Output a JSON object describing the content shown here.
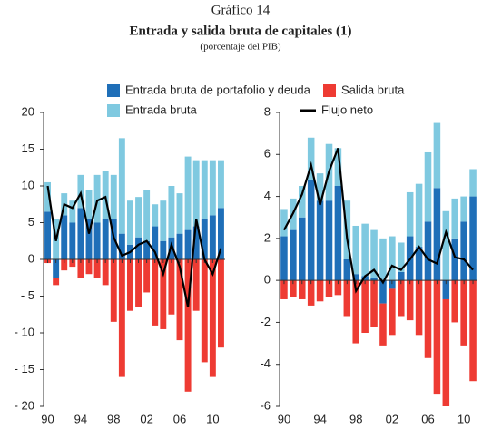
{
  "header": {
    "title": "Gráfico 14",
    "subtitle": "Entrada y salida bruta de capitales (1)",
    "note": "(porcentaje del PIB)"
  },
  "chart_data": [
    {
      "type": "bar",
      "categories": [
        "90",
        null,
        null,
        null,
        "94",
        null,
        null,
        null,
        "98",
        null,
        null,
        null,
        "02",
        null,
        null,
        null,
        "06",
        null,
        null,
        null,
        "10",
        null
      ],
      "ylim": [
        -20,
        20
      ],
      "yticks": [
        {
          "value": -20,
          "label": "- 20"
        },
        {
          "value": -15,
          "label": "- 15"
        },
        {
          "value": -10,
          "label": "- 10"
        },
        {
          "value": -5,
          "label": "- 5"
        },
        0,
        5,
        10,
        15,
        20
      ],
      "series": [
        {
          "name": "Entrada bruta de portafolio y deuda",
          "color": "#1f6fb8",
          "type": "bar",
          "values": [
            6.5,
            -2.5,
            6,
            5,
            7,
            5.5,
            5,
            5.5,
            5.5,
            3.5,
            2,
            3,
            2.5,
            4.5,
            2.5,
            3,
            3.5,
            4,
            4.5,
            5.5,
            6,
            7
          ]
        },
        {
          "name": "Entrada bruta",
          "color": "#7fc9e0",
          "type": "bar",
          "values": [
            4,
            5.5,
            3,
            3,
            4.5,
            4,
            6.5,
            6.5,
            6,
            13,
            6,
            5.5,
            7,
            3,
            5.5,
            7,
            5.5,
            10,
            9,
            8,
            7.5,
            6.5
          ]
        },
        {
          "name": "Salida bruta",
          "color": "#ee3b33",
          "type": "bar",
          "values": [
            -0.5,
            -1,
            -1.5,
            -1,
            -2.5,
            -2,
            -2.5,
            -3.5,
            -8.5,
            -16,
            -7,
            -6.5,
            -4.5,
            -9,
            -9.5,
            -7.5,
            -11,
            -18,
            -7,
            -14,
            -16,
            -12
          ]
        },
        {
          "name": "Flujo neto",
          "color": "#000000",
          "type": "line",
          "values": [
            10,
            2.5,
            7.5,
            7,
            9,
            3.5,
            8,
            8.5,
            3,
            0.5,
            1,
            2,
            2.5,
            1,
            -2,
            2,
            -1,
            -6.5,
            5.5,
            0,
            -2,
            1.5
          ]
        }
      ]
    },
    {
      "type": "bar",
      "categories": [
        "90",
        null,
        null,
        null,
        "94",
        null,
        null,
        null,
        "98",
        null,
        null,
        null,
        "02",
        null,
        null,
        null,
        "06",
        null,
        null,
        null,
        "10",
        null
      ],
      "ylim": [
        -6,
        8
      ],
      "yticks": [
        -6,
        -4,
        -2,
        0,
        2,
        4,
        6,
        8
      ],
      "series": [
        {
          "color": "#1f6fb8",
          "type": "bar",
          "values": [
            2.1,
            2.4,
            3,
            4.8,
            3.8,
            3.8,
            4.5,
            1,
            0.3,
            0.2,
            0.1,
            -1.1,
            -0.4,
            0.4,
            2.1,
            1.6,
            2.8,
            4.4,
            -0.9,
            2,
            2.8,
            4
          ]
        },
        {
          "color": "#7fc9e0",
          "type": "bar",
          "values": [
            1.3,
            1.5,
            1.5,
            2,
            1.3,
            2.7,
            1.8,
            2.8,
            2.3,
            2.5,
            2.3,
            2,
            2.1,
            1.4,
            2.1,
            3,
            3.3,
            3.1,
            3.3,
            1.9,
            1.2,
            1.3
          ]
        },
        {
          "color": "#ee3b33",
          "type": "bar",
          "values": [
            -0.9,
            -0.8,
            -0.9,
            -1.2,
            -1.0,
            -0.8,
            -0.7,
            -1.7,
            -3.0,
            -2.5,
            -2.2,
            -2.0,
            -2.2,
            -1.7,
            -1.9,
            -2.6,
            -3.7,
            -5.4,
            -5.1,
            -2.0,
            -3.1,
            -4.8
          ]
        },
        {
          "color": "#000000",
          "type": "line",
          "values": [
            2.4,
            3.2,
            4.1,
            5.5,
            3.6,
            5.2,
            6.3,
            2.0,
            -0.5,
            0.2,
            0.5,
            -0.1,
            0.7,
            0.5,
            1.0,
            1.6,
            1.0,
            0.8,
            2.3,
            1.1,
            1.0,
            0.5
          ]
        }
      ]
    }
  ]
}
